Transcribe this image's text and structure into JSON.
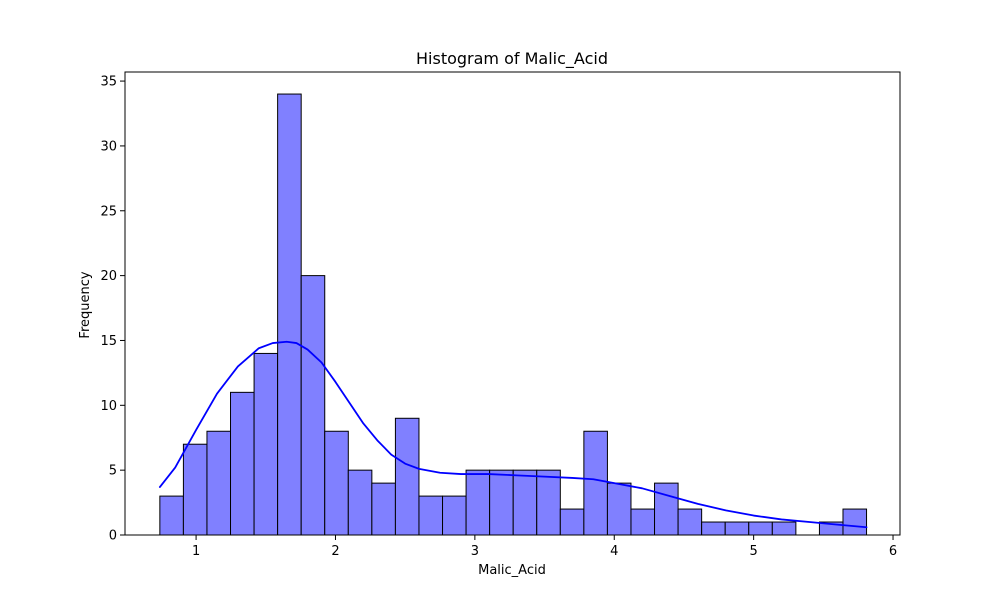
{
  "chart_data": {
    "type": "bar",
    "title": "Histogram of Malic_Acid",
    "xlabel": "Malic_Acid",
    "ylabel": "Frequency",
    "xlim": [
      0.49,
      6.05
    ],
    "ylim": [
      0,
      35.7
    ],
    "xticks": [
      1,
      2,
      3,
      4,
      5,
      6
    ],
    "yticks": [
      0,
      5,
      10,
      15,
      20,
      25,
      30,
      35
    ],
    "bin_start": 0.74,
    "bin_width": 0.169,
    "bins": [
      {
        "x0": 0.74,
        "x1": 0.909,
        "count": 3
      },
      {
        "x0": 0.909,
        "x1": 1.078,
        "count": 7
      },
      {
        "x0": 1.078,
        "x1": 1.247,
        "count": 8
      },
      {
        "x0": 1.247,
        "x1": 1.416,
        "count": 11
      },
      {
        "x0": 1.416,
        "x1": 1.585,
        "count": 14
      },
      {
        "x0": 1.585,
        "x1": 1.754,
        "count": 34
      },
      {
        "x0": 1.754,
        "x1": 1.923,
        "count": 20
      },
      {
        "x0": 1.923,
        "x1": 2.092,
        "count": 8
      },
      {
        "x0": 2.092,
        "x1": 2.261,
        "count": 5
      },
      {
        "x0": 2.261,
        "x1": 2.43,
        "count": 4
      },
      {
        "x0": 2.43,
        "x1": 2.599,
        "count": 9
      },
      {
        "x0": 2.599,
        "x1": 2.768,
        "count": 3
      },
      {
        "x0": 2.768,
        "x1": 2.937,
        "count": 3
      },
      {
        "x0": 2.937,
        "x1": 3.106,
        "count": 5
      },
      {
        "x0": 3.106,
        "x1": 3.275,
        "count": 5
      },
      {
        "x0": 3.275,
        "x1": 3.444,
        "count": 5
      },
      {
        "x0": 3.444,
        "x1": 3.613,
        "count": 5
      },
      {
        "x0": 3.613,
        "x1": 3.782,
        "count": 2
      },
      {
        "x0": 3.782,
        "x1": 3.951,
        "count": 8
      },
      {
        "x0": 3.951,
        "x1": 4.12,
        "count": 4
      },
      {
        "x0": 4.12,
        "x1": 4.289,
        "count": 2
      },
      {
        "x0": 4.289,
        "x1": 4.458,
        "count": 4
      },
      {
        "x0": 4.458,
        "x1": 4.627,
        "count": 2
      },
      {
        "x0": 4.627,
        "x1": 4.796,
        "count": 1
      },
      {
        "x0": 4.796,
        "x1": 4.965,
        "count": 1
      },
      {
        "x0": 4.965,
        "x1": 5.134,
        "count": 1
      },
      {
        "x0": 5.134,
        "x1": 5.303,
        "count": 1
      },
      {
        "x0": 5.303,
        "x1": 5.472,
        "count": 0
      },
      {
        "x0": 5.472,
        "x1": 5.641,
        "count": 1
      },
      {
        "x0": 5.641,
        "x1": 5.81,
        "count": 2
      }
    ],
    "kde": {
      "x": [
        0.74,
        0.85,
        1.0,
        1.15,
        1.3,
        1.45,
        1.55,
        1.65,
        1.72,
        1.8,
        1.9,
        2.0,
        2.1,
        2.2,
        2.3,
        2.4,
        2.5,
        2.6,
        2.75,
        2.9,
        3.1,
        3.3,
        3.5,
        3.7,
        3.85,
        4.0,
        4.2,
        4.4,
        4.6,
        4.8,
        5.0,
        5.2,
        5.4,
        5.6,
        5.81
      ],
      "y": [
        3.7,
        5.2,
        8.1,
        10.9,
        13.0,
        14.4,
        14.8,
        14.9,
        14.8,
        14.3,
        13.3,
        11.8,
        10.2,
        8.6,
        7.3,
        6.2,
        5.5,
        5.1,
        4.8,
        4.7,
        4.7,
        4.6,
        4.5,
        4.4,
        4.3,
        4.0,
        3.6,
        3.0,
        2.4,
        1.9,
        1.5,
        1.2,
        1.0,
        0.8,
        0.6
      ]
    },
    "bar_fill": "#8080ff",
    "bar_edge": "#000000",
    "kde_color": "#0000ff",
    "grid": false
  }
}
